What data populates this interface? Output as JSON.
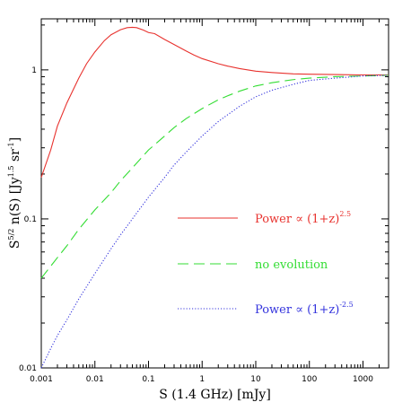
{
  "chart_data": {
    "type": "line",
    "title": "",
    "xlabel": {
      "main": "S (1.4 GHz) [mJy]"
    },
    "ylabel": {
      "a": "S",
      "a_sup": "5/2",
      "b": " n(S) [Jy",
      "b_sup": "1.5",
      "c": " sr",
      "c_sup": "-1",
      "d": "]"
    },
    "xscale": "log",
    "yscale": "log",
    "xlim": [
      0.001,
      3000
    ],
    "ylim": [
      0.01,
      2.2
    ],
    "x_ticks": [
      {
        "value": 0.001,
        "label": "0.001"
      },
      {
        "value": 0.01,
        "label": "0.01"
      },
      {
        "value": 0.1,
        "label": "0.1"
      },
      {
        "value": 1,
        "label": "1"
      },
      {
        "value": 10,
        "label": "10"
      },
      {
        "value": 100,
        "label": "100"
      },
      {
        "value": 1000,
        "label": "1000"
      }
    ],
    "y_ticks": [
      {
        "value": 0.01,
        "label": "0.01"
      },
      {
        "value": 0.1,
        "label": "0.1"
      },
      {
        "value": 1,
        "label": "1"
      }
    ],
    "grid": false,
    "legend_position": "center-right",
    "series": [
      {
        "key": "power_pos",
        "legend": {
          "text": "Power ∝ (1+z)",
          "sup": "2.5"
        },
        "color": "#e8322e",
        "dash": "solid",
        "points": [
          [
            0.001,
            0.19
          ],
          [
            0.0015,
            0.29
          ],
          [
            0.002,
            0.42
          ],
          [
            0.003,
            0.6
          ],
          [
            0.005,
            0.88
          ],
          [
            0.007,
            1.1
          ],
          [
            0.01,
            1.32
          ],
          [
            0.015,
            1.57
          ],
          [
            0.02,
            1.72
          ],
          [
            0.03,
            1.86
          ],
          [
            0.04,
            1.92
          ],
          [
            0.05,
            1.93
          ],
          [
            0.06,
            1.92
          ],
          [
            0.08,
            1.85
          ],
          [
            0.1,
            1.78
          ],
          [
            0.13,
            1.75
          ],
          [
            0.2,
            1.6
          ],
          [
            0.3,
            1.48
          ],
          [
            0.5,
            1.34
          ],
          [
            0.7,
            1.26
          ],
          [
            1,
            1.19
          ],
          [
            2,
            1.1
          ],
          [
            3,
            1.06
          ],
          [
            5,
            1.02
          ],
          [
            10,
            0.98
          ],
          [
            20,
            0.96
          ],
          [
            50,
            0.94
          ],
          [
            100,
            0.935
          ],
          [
            300,
            0.93
          ],
          [
            1000,
            0.925
          ],
          [
            3000,
            0.925
          ]
        ]
      },
      {
        "key": "no_evol",
        "legend": {
          "text": "no evolution"
        },
        "color": "#33dd33",
        "dash": "long",
        "points": [
          [
            0.001,
            0.04
          ],
          [
            0.002,
            0.055
          ],
          [
            0.003,
            0.066
          ],
          [
            0.005,
            0.085
          ],
          [
            0.01,
            0.115
          ],
          [
            0.02,
            0.15
          ],
          [
            0.03,
            0.18
          ],
          [
            0.05,
            0.22
          ],
          [
            0.1,
            0.29
          ],
          [
            0.2,
            0.36
          ],
          [
            0.3,
            0.41
          ],
          [
            0.5,
            0.47
          ],
          [
            1,
            0.55
          ],
          [
            2,
            0.63
          ],
          [
            3,
            0.67
          ],
          [
            5,
            0.72
          ],
          [
            10,
            0.78
          ],
          [
            20,
            0.82
          ],
          [
            50,
            0.86
          ],
          [
            100,
            0.88
          ],
          [
            300,
            0.9
          ],
          [
            1000,
            0.91
          ],
          [
            3000,
            0.92
          ]
        ]
      },
      {
        "key": "power_neg",
        "legend": {
          "text": "Power ∝ (1+z)",
          "sup": "-2.5"
        },
        "color": "#3333dd",
        "dash": "dotted",
        "points": [
          [
            0.001,
            0.01
          ],
          [
            0.0015,
            0.0135
          ],
          [
            0.002,
            0.0165
          ],
          [
            0.003,
            0.021
          ],
          [
            0.005,
            0.029
          ],
          [
            0.01,
            0.043
          ],
          [
            0.02,
            0.063
          ],
          [
            0.03,
            0.078
          ],
          [
            0.05,
            0.1
          ],
          [
            0.1,
            0.14
          ],
          [
            0.2,
            0.19
          ],
          [
            0.3,
            0.23
          ],
          [
            0.5,
            0.28
          ],
          [
            1,
            0.36
          ],
          [
            2,
            0.45
          ],
          [
            3,
            0.5
          ],
          [
            5,
            0.57
          ],
          [
            10,
            0.66
          ],
          [
            20,
            0.73
          ],
          [
            50,
            0.8
          ],
          [
            100,
            0.85
          ],
          [
            300,
            0.88
          ],
          [
            1000,
            0.91
          ],
          [
            3000,
            0.92
          ]
        ]
      }
    ]
  }
}
